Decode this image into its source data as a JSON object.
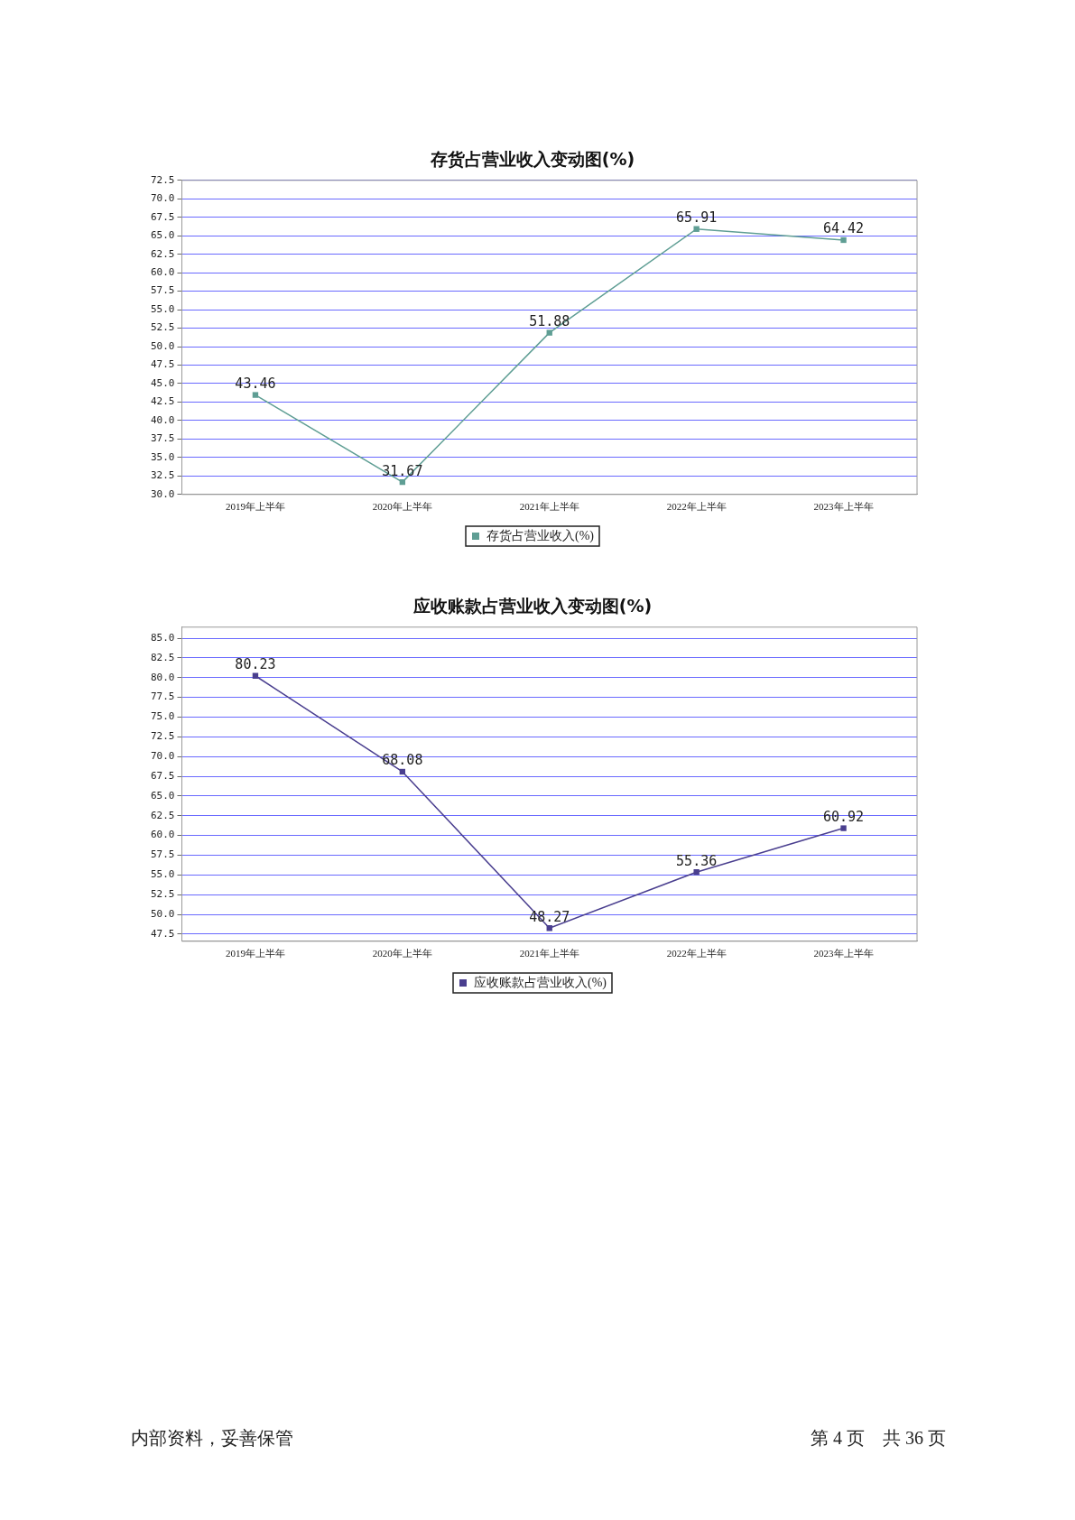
{
  "chart_data": [
    {
      "type": "line",
      "title": "存货占营业收入变动图(%)",
      "categories": [
        "2019年上半年",
        "2020年上半年",
        "2021年上半年",
        "2022年上半年",
        "2023年上半年"
      ],
      "series": [
        {
          "name": "存货占营业收入(%)",
          "color": "#5f9e94",
          "values": [
            43.46,
            31.67,
            51.88,
            65.91,
            64.42
          ]
        }
      ],
      "ylim": [
        30,
        72.5
      ],
      "yticks": [
        {
          "value": 30,
          "label": "30.0"
        },
        32.5,
        {
          "value": 35,
          "label": "35.0"
        },
        37.5,
        {
          "value": 40,
          "label": "40.0"
        },
        42.5,
        {
          "value": 45,
          "label": "45.0"
        },
        47.5,
        {
          "value": 50,
          "label": "50.0"
        },
        52.5,
        {
          "value": 55,
          "label": "55.0"
        },
        57.5,
        {
          "value": 60,
          "label": "60.0"
        },
        62.5,
        {
          "value": 65,
          "label": "65.0"
        },
        67.5,
        {
          "value": 70,
          "label": "70.0"
        },
        72.5
      ],
      "grid": "y",
      "legend": "bottom",
      "marker": "square",
      "data_labels": true
    },
    {
      "type": "line",
      "title": "应收账款占营业收入变动图(%)",
      "categories": [
        "2019年上半年",
        "2020年上半年",
        "2021年上半年",
        "2022年上半年",
        "2023年上半年"
      ],
      "series": [
        {
          "name": "应收账款占营业收入(%)",
          "color": "#4a3f8f",
          "values": [
            80.23,
            68.08,
            48.27,
            55.36,
            60.92
          ]
        }
      ],
      "ylim": [
        46.6,
        86.4
      ],
      "yticks": [
        47.5,
        {
          "value": 50,
          "label": "50.0"
        },
        52.5,
        {
          "value": 55,
          "label": "55.0"
        },
        57.5,
        {
          "value": 60,
          "label": "60.0"
        },
        62.5,
        {
          "value": 65,
          "label": "65.0"
        },
        67.5,
        {
          "value": 70,
          "label": "70.0"
        },
        72.5,
        {
          "value": 75,
          "label": "75.0"
        },
        77.5,
        {
          "value": 80,
          "label": "80.0"
        },
        82.5,
        {
          "value": 85,
          "label": "85.0"
        }
      ],
      "grid": "y",
      "legend": "bottom",
      "marker": "square",
      "data_labels": true,
      "annotations": [
        "内部资料，妥善保管",
        "第 4 页　共 36 页"
      ]
    }
  ]
}
